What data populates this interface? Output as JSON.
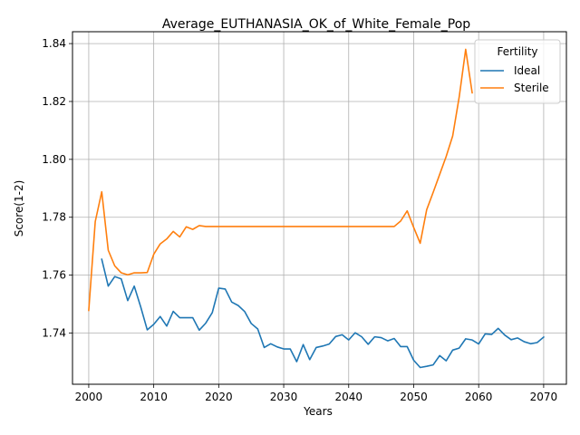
{
  "chart_data": {
    "type": "line",
    "title": "Average_EUTHANASIA_OK_of_White_Female_Pop",
    "xlabel": "Years",
    "ylabel": "Score(1-2)",
    "xlim": [
      1997.5,
      2073.5
    ],
    "ylim": [
      1.7223,
      1.8441
    ],
    "xticks": [
      2000,
      2010,
      2020,
      2030,
      2040,
      2050,
      2060,
      2070
    ],
    "xtick_labels": [
      "2000",
      "2010",
      "2020",
      "2030",
      "2040",
      "2050",
      "2060",
      "2070"
    ],
    "yticks": [
      1.74,
      1.76,
      1.78,
      1.8,
      1.82,
      1.84
    ],
    "ytick_labels": [
      "1.74",
      "1.76",
      "1.78",
      "1.80",
      "1.82",
      "1.84"
    ],
    "grid": true,
    "legend": {
      "title": "Fertility",
      "placement": "top-right"
    },
    "series": [
      {
        "name": "Ideal",
        "color": "#1f77b4",
        "x": [
          2002,
          2003,
          2004,
          2005,
          2006,
          2007,
          2008,
          2009,
          2010,
          2011,
          2012,
          2013,
          2014,
          2015,
          2016,
          2017,
          2018,
          2019,
          2020,
          2021,
          2022,
          2023,
          2024,
          2025,
          2026,
          2027,
          2028,
          2029,
          2030,
          2031,
          2032,
          2033,
          2034,
          2035,
          2036,
          2037,
          2038,
          2039,
          2040,
          2041,
          2042,
          2043,
          2044,
          2045,
          2046,
          2047,
          2048,
          2049,
          2050,
          2051,
          2052,
          2053,
          2054,
          2055,
          2056,
          2057,
          2058,
          2059,
          2060,
          2061,
          2062,
          2063,
          2064,
          2065,
          2066,
          2067,
          2068,
          2069,
          2070
        ],
        "values": [
          1.7655,
          1.7562,
          1.7595,
          1.7587,
          1.7512,
          1.7562,
          1.749,
          1.7411,
          1.743,
          1.7457,
          1.7424,
          1.7475,
          1.7453,
          1.7453,
          1.7453,
          1.741,
          1.7434,
          1.747,
          1.7555,
          1.7552,
          1.7507,
          1.7495,
          1.7474,
          1.7433,
          1.7414,
          1.735,
          1.7363,
          1.7352,
          1.7345,
          1.7345,
          1.7301,
          1.736,
          1.7308,
          1.735,
          1.7355,
          1.7362,
          1.7388,
          1.7394,
          1.7376,
          1.7401,
          1.7387,
          1.7361,
          1.7387,
          1.7384,
          1.7373,
          1.7381,
          1.7353,
          1.7353,
          1.7306,
          1.7281,
          1.7285,
          1.729,
          1.7322,
          1.7304,
          1.7341,
          1.7348,
          1.738,
          1.7376,
          1.7362,
          1.7397,
          1.7395,
          1.7416,
          1.7393,
          1.7377,
          1.7383,
          1.737,
          1.7363,
          1.7367,
          1.7386
        ]
      },
      {
        "name": "Sterile",
        "color": "#ff7f0e",
        "x": [
          2000,
          2001,
          2002,
          2003,
          2004,
          2005,
          2006,
          2007,
          2008,
          2009,
          2010,
          2011,
          2012,
          2013,
          2014,
          2015,
          2016,
          2017,
          2018,
          2019,
          2020,
          2025,
          2030,
          2035,
          2040,
          2045,
          2046,
          2047,
          2048,
          2049,
          2050,
          2051,
          2052,
          2053,
          2054,
          2055,
          2056,
          2057,
          2058,
          2059
        ],
        "values": [
          1.7478,
          1.7785,
          1.7888,
          1.7686,
          1.7632,
          1.7608,
          1.7601,
          1.7608,
          1.7608,
          1.7609,
          1.7672,
          1.7708,
          1.7725,
          1.7751,
          1.7732,
          1.7767,
          1.7758,
          1.7771,
          1.7768,
          1.7768,
          1.7768,
          1.7768,
          1.7768,
          1.7768,
          1.7768,
          1.7768,
          1.7768,
          1.7768,
          1.7787,
          1.7822,
          1.7765,
          1.771,
          1.7826,
          1.7886,
          1.7948,
          1.801,
          1.8081,
          1.8215,
          1.838,
          1.823
        ]
      }
    ]
  }
}
